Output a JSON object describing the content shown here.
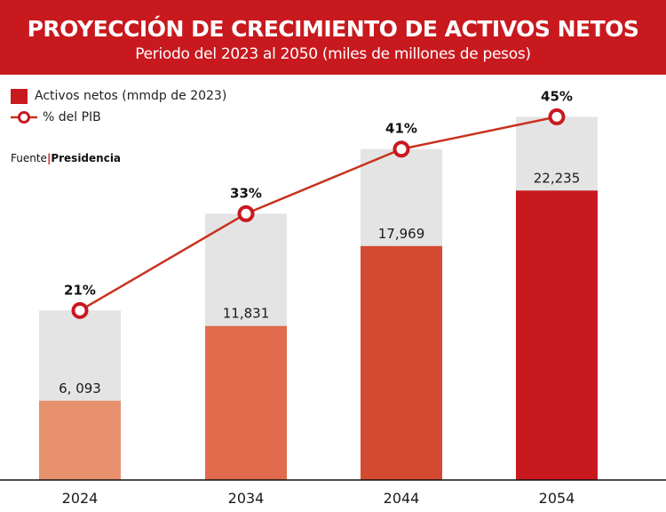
{
  "header": {
    "title": "PROYECCIÓN DE CRECIMIENTO DE ACTIVOS NETOS",
    "subtitle": "Periodo del 2023 al 2050 (miles de millones de pesos)"
  },
  "legend": {
    "bars_label": "Activos netos (mmdp de 2023)",
    "line_label": "% del PIB"
  },
  "source": {
    "prefix": "Fuente",
    "separator": "|",
    "name": "Presidencia"
  },
  "colors": {
    "header_bg": "#c8191f",
    "background_bar": "#e4e4e4",
    "line": "#c8321f",
    "bar_fills": [
      "#e8916e",
      "#e06b4d",
      "#d44a30",
      "#c8191f"
    ]
  },
  "chart_data": {
    "type": "bar",
    "title": "PROYECCIÓN DE CRECIMIENTO DE ACTIVOS NETOS",
    "subtitle": "Periodo del 2023 al 2050 (miles de millones de pesos)",
    "categories": [
      "2024",
      "2034",
      "2044",
      "2054"
    ],
    "series": [
      {
        "name": "Activos netos (mmdp de 2023)",
        "type": "bar",
        "values": [
          6093,
          11831,
          17969,
          22235
        ],
        "labels": [
          "6, 093",
          "11,831",
          "17,969",
          "22,235"
        ]
      },
      {
        "name": "% del PIB",
        "type": "line",
        "values": [
          21,
          33,
          41,
          45
        ],
        "labels": [
          "21%",
          "33%",
          "41%",
          "45%"
        ]
      }
    ],
    "ylim_bars": [
      0,
      31000
    ],
    "ylim_percent": [
      0,
      50
    ],
    "grid": false,
    "legend_position": "top-left"
  }
}
